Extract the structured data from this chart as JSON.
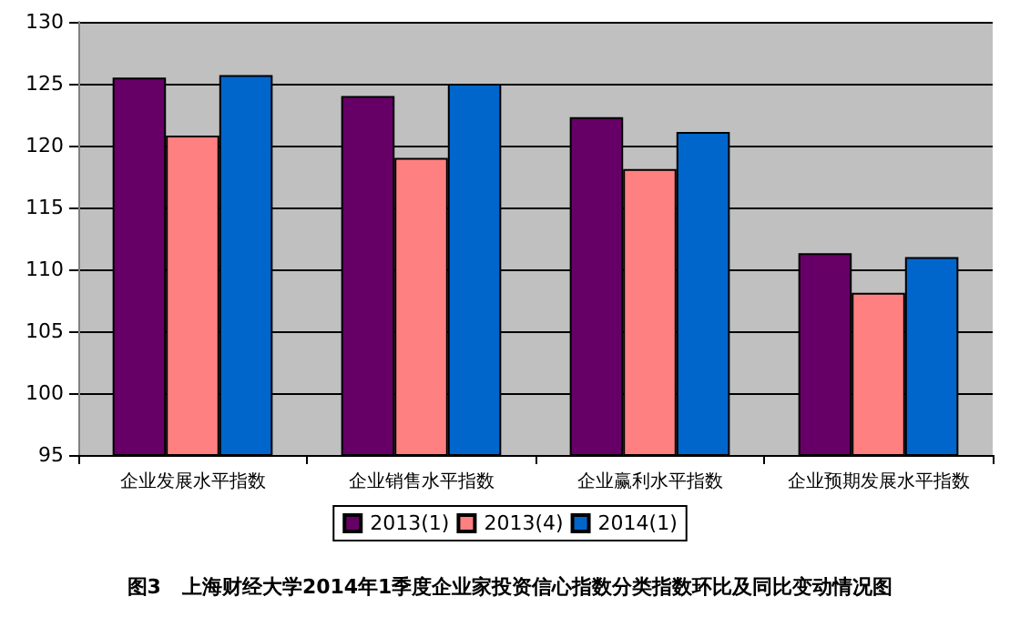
{
  "chart_data": {
    "type": "bar",
    "title": "图3   上海财经大学2014年1季度企业家投资信心指数分类指数环比及同比变动情况图",
    "categories": [
      "企业发展水平指数",
      "企业销售水平指数",
      "企业赢利水平指数",
      "企业预期发展水平指数"
    ],
    "series": [
      {
        "name": "2013(1)",
        "color": "#660066",
        "values": [
          125.5,
          124.0,
          122.3,
          111.3
        ]
      },
      {
        "name": "2013(4)",
        "color": "#ff8080",
        "values": [
          120.8,
          119.0,
          118.1,
          108.1
        ]
      },
      {
        "name": "2014(1)",
        "color": "#0066cc",
        "values": [
          125.7,
          125.0,
          121.1,
          111.0
        ]
      }
    ],
    "ylim": [
      95,
      130
    ],
    "yticks": [
      95,
      100,
      105,
      110,
      115,
      120,
      125,
      130
    ],
    "grid": "y",
    "legend": "bottom"
  }
}
